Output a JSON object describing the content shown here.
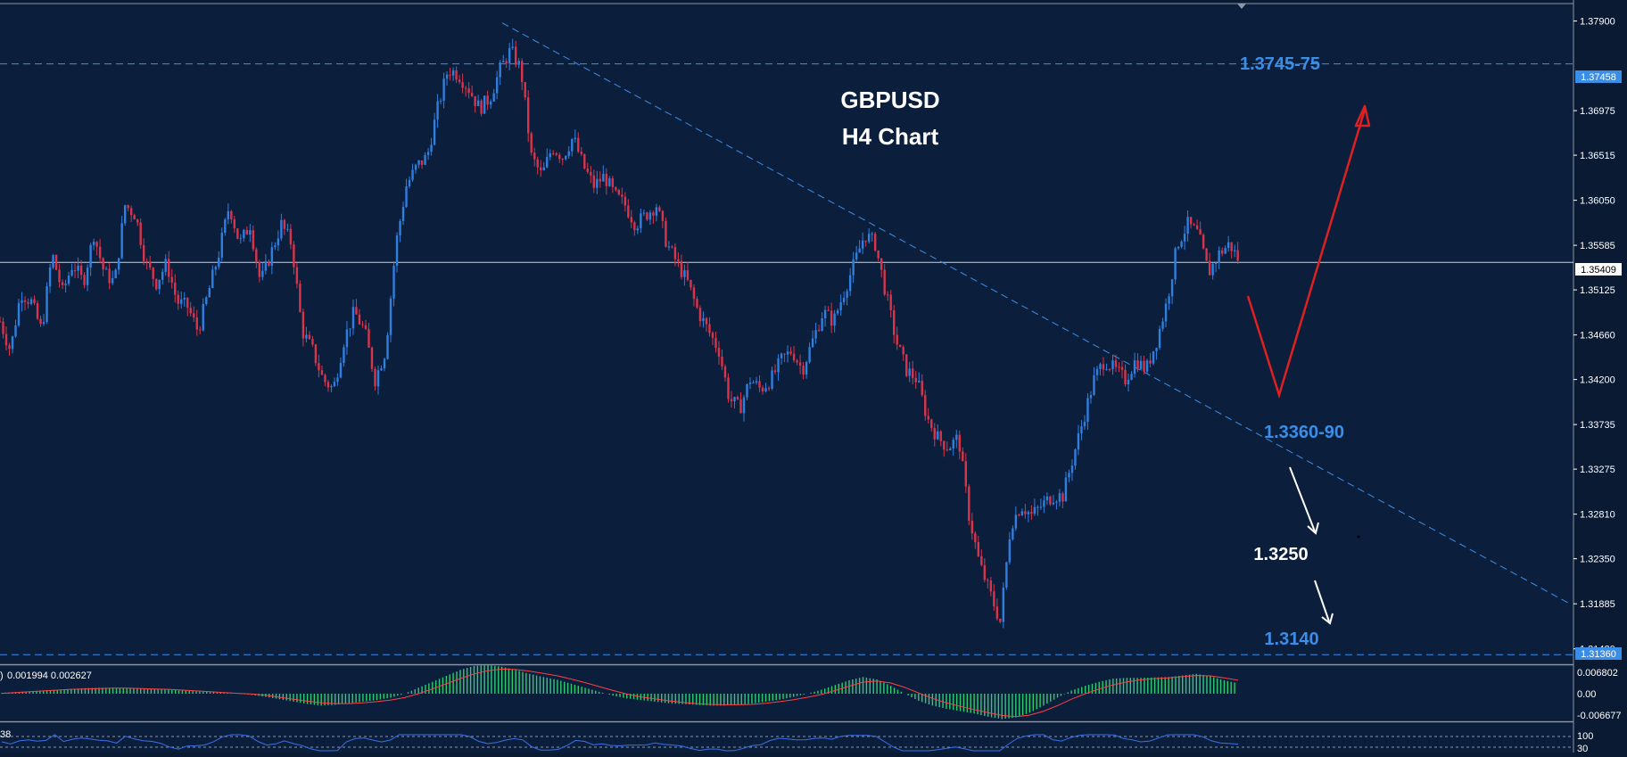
{
  "colors": {
    "background": "#0b1f3d",
    "grid_line": "#1e3a63",
    "bull": "#2f7fe0",
    "bear": "#d8344a",
    "level": "#3b8ee8",
    "arrow_up": "#e02020",
    "arrow_down": "#ffffff",
    "hist": "#2ecc71",
    "signal": "#ff4040",
    "rsi": "#3b6fe8"
  },
  "title": {
    "line1": "GBPUSD",
    "line2": "H4 Chart"
  },
  "annotations": {
    "top_level": "1.3745-75",
    "trend_level": "1.3360-90",
    "target_1": "1.3250",
    "target_2": "1.3140"
  },
  "price_tags": {
    "top_level": "1.37458",
    "current": "1.35409",
    "bottom_level": "1.31360"
  },
  "chart_data": {
    "type": "candlestick",
    "symbol": "GBPUSD",
    "timeframe": "H4",
    "ylim": [
      1.3127,
      1.3808
    ],
    "y_ticks": [
      "1.37900",
      "1.36975",
      "1.36515",
      "1.36050",
      "1.35585",
      "1.35125",
      "1.34660",
      "1.34200",
      "1.33735",
      "1.33275",
      "1.32810",
      "1.32350",
      "1.31885",
      "1.31420"
    ],
    "horizontal_levels": [
      1.37458,
      1.35409,
      1.3136
    ],
    "trendline": {
      "from": 1.3788,
      "to": 1.3189
    },
    "price_path": [
      [
        0,
        1.348
      ],
      [
        10,
        1.345
      ],
      [
        20,
        1.351
      ],
      [
        30,
        1.35
      ],
      [
        40,
        1.347
      ],
      [
        50,
        1.355
      ],
      [
        60,
        1.351
      ],
      [
        70,
        1.354
      ],
      [
        80,
        1.352
      ],
      [
        90,
        1.357
      ],
      [
        100,
        1.353
      ],
      [
        110,
        1.352
      ],
      [
        120,
        1.36
      ],
      [
        130,
        1.359
      ],
      [
        140,
        1.354
      ],
      [
        150,
        1.352
      ],
      [
        160,
        1.354
      ],
      [
        170,
        1.35
      ],
      [
        180,
        1.3495
      ],
      [
        190,
        1.347
      ],
      [
        200,
        1.351
      ],
      [
        210,
        1.355
      ],
      [
        220,
        1.36
      ],
      [
        230,
        1.356
      ],
      [
        240,
        1.358
      ],
      [
        250,
        1.352
      ],
      [
        260,
        1.355
      ],
      [
        270,
        1.358
      ],
      [
        280,
        1.356
      ],
      [
        290,
        1.347
      ],
      [
        300,
        1.345
      ],
      [
        310,
        1.342
      ],
      [
        320,
        1.341
      ],
      [
        330,
        1.346
      ],
      [
        340,
        1.349
      ],
      [
        350,
        1.347
      ],
      [
        360,
        1.342
      ],
      [
        370,
        1.345
      ],
      [
        380,
        1.356
      ],
      [
        390,
        1.362
      ],
      [
        400,
        1.364
      ],
      [
        410,
        1.365
      ],
      [
        420,
        1.37
      ],
      [
        430,
        1.374
      ],
      [
        440,
        1.3735
      ],
      [
        450,
        1.372
      ],
      [
        460,
        1.37
      ],
      [
        470,
        1.371
      ],
      [
        480,
        1.374
      ],
      [
        490,
        1.376
      ],
      [
        500,
        1.374
      ],
      [
        510,
        1.365
      ],
      [
        520,
        1.363
      ],
      [
        530,
        1.366
      ],
      [
        540,
        1.365
      ],
      [
        550,
        1.367
      ],
      [
        560,
        1.364
      ],
      [
        570,
        1.362
      ],
      [
        580,
        1.363
      ],
      [
        590,
        1.361
      ],
      [
        600,
        1.36
      ],
      [
        610,
        1.358
      ],
      [
        620,
        1.359
      ],
      [
        630,
        1.36
      ],
      [
        640,
        1.356
      ],
      [
        650,
        1.354
      ],
      [
        660,
        1.352
      ],
      [
        670,
        1.349
      ],
      [
        680,
        1.347
      ],
      [
        690,
        1.345
      ],
      [
        700,
        1.34
      ],
      [
        710,
        1.339
      ],
      [
        720,
        1.342
      ],
      [
        730,
        1.341
      ],
      [
        740,
        1.342
      ],
      [
        750,
        1.344
      ],
      [
        760,
        1.345
      ],
      [
        770,
        1.343
      ],
      [
        780,
        1.346
      ],
      [
        790,
        1.349
      ],
      [
        800,
        1.348
      ],
      [
        810,
        1.351
      ],
      [
        820,
        1.354
      ],
      [
        830,
        1.357
      ],
      [
        840,
        1.356
      ],
      [
        850,
        1.351
      ],
      [
        860,
        1.346
      ],
      [
        870,
        1.343
      ],
      [
        880,
        1.342
      ],
      [
        890,
        1.338
      ],
      [
        900,
        1.336
      ],
      [
        910,
        1.335
      ],
      [
        920,
        1.336
      ],
      [
        930,
        1.328
      ],
      [
        940,
        1.323
      ],
      [
        950,
        1.32
      ],
      [
        960,
        1.317
      ],
      [
        970,
        1.327
      ],
      [
        980,
        1.329
      ],
      [
        990,
        1.328
      ],
      [
        1000,
        1.329
      ],
      [
        1010,
        1.33
      ],
      [
        1020,
        1.33
      ],
      [
        1030,
        1.334
      ],
      [
        1040,
        1.338
      ],
      [
        1050,
        1.342
      ],
      [
        1060,
        1.344
      ],
      [
        1070,
        1.343
      ],
      [
        1080,
        1.342
      ],
      [
        1090,
        1.344
      ],
      [
        1100,
        1.343
      ],
      [
        1110,
        1.346
      ],
      [
        1120,
        1.35
      ],
      [
        1130,
        1.356
      ],
      [
        1140,
        1.358
      ],
      [
        1150,
        1.357
      ],
      [
        1160,
        1.353
      ],
      [
        1170,
        1.355
      ],
      [
        1180,
        1.356
      ],
      [
        1190,
        1.3541
      ]
    ]
  },
  "macd": {
    "label": "0.001994 0.002627",
    "label_prefix": ")",
    "ticks": [
      "0.006802",
      "0.00",
      "-0.006677"
    ],
    "values": [
      0.0002,
      0.0004,
      0.0006,
      0.0008,
      0.001,
      0.0012,
      0.0014,
      0.0015,
      0.0015,
      0.0014,
      0.0013,
      0.0012,
      0.001,
      0.0008,
      0.0006,
      0.0004,
      0.0002,
      0.0,
      -0.0003,
      -0.0008,
      -0.0014,
      -0.002,
      -0.0026,
      -0.003,
      -0.0028,
      -0.0024,
      -0.002,
      -0.0016,
      -0.001,
      0.0,
      0.0015,
      0.003,
      0.0045,
      0.006,
      0.007,
      0.0072,
      0.0068,
      0.006,
      0.005,
      0.0042,
      0.0035,
      0.0025,
      0.0015,
      0.0005,
      -0.0005,
      -0.0012,
      -0.0016,
      -0.002,
      -0.0024,
      -0.0026,
      -0.0028,
      -0.003,
      -0.003,
      -0.0028,
      -0.0025,
      -0.002,
      -0.0015,
      -0.0008,
      0.0,
      0.001,
      0.0022,
      0.0034,
      0.0042,
      0.0036,
      0.002,
      0.0,
      -0.0018,
      -0.003,
      -0.0038,
      -0.0044,
      -0.005,
      -0.0058,
      -0.0064,
      -0.006,
      -0.0048,
      -0.003,
      -0.001,
      0.0008,
      0.002,
      0.003,
      0.0038,
      0.004,
      0.004,
      0.0041,
      0.0042,
      0.0046,
      0.005,
      0.0044,
      0.0034,
      0.0026
    ],
    "signal": [
      0.0001,
      0.0003,
      0.0005,
      0.0007,
      0.0009,
      0.0011,
      0.0012,
      0.0013,
      0.0014,
      0.0014,
      0.0013,
      0.0012,
      0.0011,
      0.0009,
      0.0007,
      0.0005,
      0.0003,
      0.0001,
      -0.0001,
      -0.0004,
      -0.0009,
      -0.0014,
      -0.0019,
      -0.0023,
      -0.0025,
      -0.0025,
      -0.0023,
      -0.002,
      -0.0016,
      -0.001,
      0.0,
      0.0012,
      0.0025,
      0.0038,
      0.005,
      0.0058,
      0.0062,
      0.0061,
      0.0057,
      0.0051,
      0.0045,
      0.0037,
      0.0028,
      0.0018,
      0.0008,
      -0.0001,
      -0.0008,
      -0.0013,
      -0.0018,
      -0.0022,
      -0.0025,
      -0.0027,
      -0.0028,
      -0.0028,
      -0.0027,
      -0.0024,
      -0.002,
      -0.0015,
      -0.0009,
      -0.0002,
      0.0008,
      0.0019,
      0.0029,
      0.0032,
      0.0027,
      0.0016,
      0.0002,
      -0.0012,
      -0.0023,
      -0.0032,
      -0.004,
      -0.0048,
      -0.0055,
      -0.0058,
      -0.0054,
      -0.0044,
      -0.003,
      -0.0014,
      0.0,
      0.0012,
      0.0022,
      0.003,
      0.0035,
      0.0038,
      0.004,
      0.0043,
      0.0046,
      0.0045,
      0.004,
      0.0034
    ]
  },
  "rsi": {
    "label": "38",
    "ticks": [
      "100",
      "30"
    ]
  }
}
